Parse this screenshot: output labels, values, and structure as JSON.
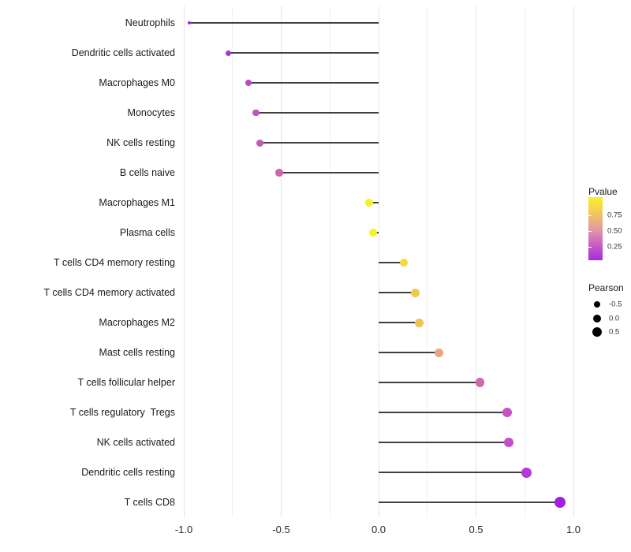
{
  "chart_data": {
    "type": "scatter",
    "variant": "lollipop",
    "title": "",
    "xlabel": "",
    "ylabel": "",
    "xlim": [
      -1.15,
      1.1
    ],
    "x_tick_values": [
      -1.0,
      -0.5,
      0.0,
      0.5,
      1.0
    ],
    "x_tick_labels": [
      "-1.0",
      "-0.5",
      "0.0",
      "0.5",
      "1.0"
    ],
    "minor_grid_step": 0.25,
    "grid": "vertical only, light gray",
    "legend_position": "right",
    "baseline_value": 0.0,
    "points": [
      {
        "label": "Neutrophils",
        "pearson": -0.97,
        "pvalue_est": 0.02,
        "color": "#8F2BE0",
        "diameter": 4
      },
      {
        "label": "Dendritic cells activated",
        "pearson": -0.77,
        "pvalue_est": 0.1,
        "color": "#A63BCD",
        "diameter": 7
      },
      {
        "label": "Macrophages M0",
        "pearson": -0.67,
        "pvalue_est": 0.18,
        "color": "#BB49C5",
        "diameter": 8
      },
      {
        "label": "Monocytes",
        "pearson": -0.63,
        "pvalue_est": 0.22,
        "color": "#C352BE",
        "diameter": 8.5
      },
      {
        "label": "NK cells resting",
        "pearson": -0.61,
        "pvalue_est": 0.25,
        "color": "#C657BA",
        "diameter": 9
      },
      {
        "label": "B cells naive",
        "pearson": -0.51,
        "pvalue_est": 0.32,
        "color": "#CD64B2",
        "diameter": 9.5
      },
      {
        "label": "Macrophages M1",
        "pearson": -0.05,
        "pvalue_est": 0.92,
        "color": "#F6F120",
        "diameter": 10
      },
      {
        "label": "Plasma cells",
        "pearson": -0.03,
        "pvalue_est": 0.93,
        "color": "#F7F222",
        "diameter": 10
      },
      {
        "label": "T cells CD4 memory resting",
        "pearson": 0.13,
        "pvalue_est": 0.8,
        "color": "#F3D93C",
        "diameter": 10.5
      },
      {
        "label": "T cells CD4 memory activated",
        "pearson": 0.19,
        "pvalue_est": 0.73,
        "color": "#F1C74F",
        "diameter": 11
      },
      {
        "label": "Macrophages M2",
        "pearson": 0.21,
        "pvalue_est": 0.7,
        "color": "#EFC258",
        "diameter": 11
      },
      {
        "label": "Mast cells resting",
        "pearson": 0.31,
        "pvalue_est": 0.55,
        "color": "#E9A57D",
        "diameter": 11
      },
      {
        "label": "T cells follicular helper",
        "pearson": 0.52,
        "pvalue_est": 0.35,
        "color": "#D268AB",
        "diameter": 11.5
      },
      {
        "label": "T cells regulatory  Tregs",
        "pearson": 0.66,
        "pvalue_est": 0.25,
        "color": "#C950C4",
        "diameter": 12
      },
      {
        "label": "NK cells activated",
        "pearson": 0.67,
        "pvalue_est": 0.23,
        "color": "#C44ECA",
        "diameter": 12
      },
      {
        "label": "Dendritic cells resting",
        "pearson": 0.76,
        "pvalue_est": 0.13,
        "color": "#B33AD9",
        "diameter": 13
      },
      {
        "label": "T cells CD8",
        "pearson": 0.93,
        "pvalue_est": 0.02,
        "color": "#A21FE2",
        "diameter": 14
      }
    ]
  },
  "legends": {
    "pvalue": {
      "title": "Pvalue",
      "tick_labels": [
        "0.75",
        "0.50",
        "0.25"
      ],
      "gradient_top_to_bottom": [
        "#F9F227",
        "#F2C75E",
        "#E59AA3",
        "#CB5FC3",
        "#A72BE0"
      ]
    },
    "pearson": {
      "title": "Pearson",
      "dot_color": "#000000",
      "items": [
        {
          "label": "-0.5",
          "diameter": 8
        },
        {
          "label": "0.0",
          "diameter": 10
        },
        {
          "label": "0.5",
          "diameter": 12
        }
      ]
    }
  },
  "colors": {
    "segment": "#3f3f3f",
    "grid_major": "#e3e3e3",
    "grid_minor": "#f0f0f0",
    "text": "#1a1a1a",
    "background": "#ffffff"
  }
}
